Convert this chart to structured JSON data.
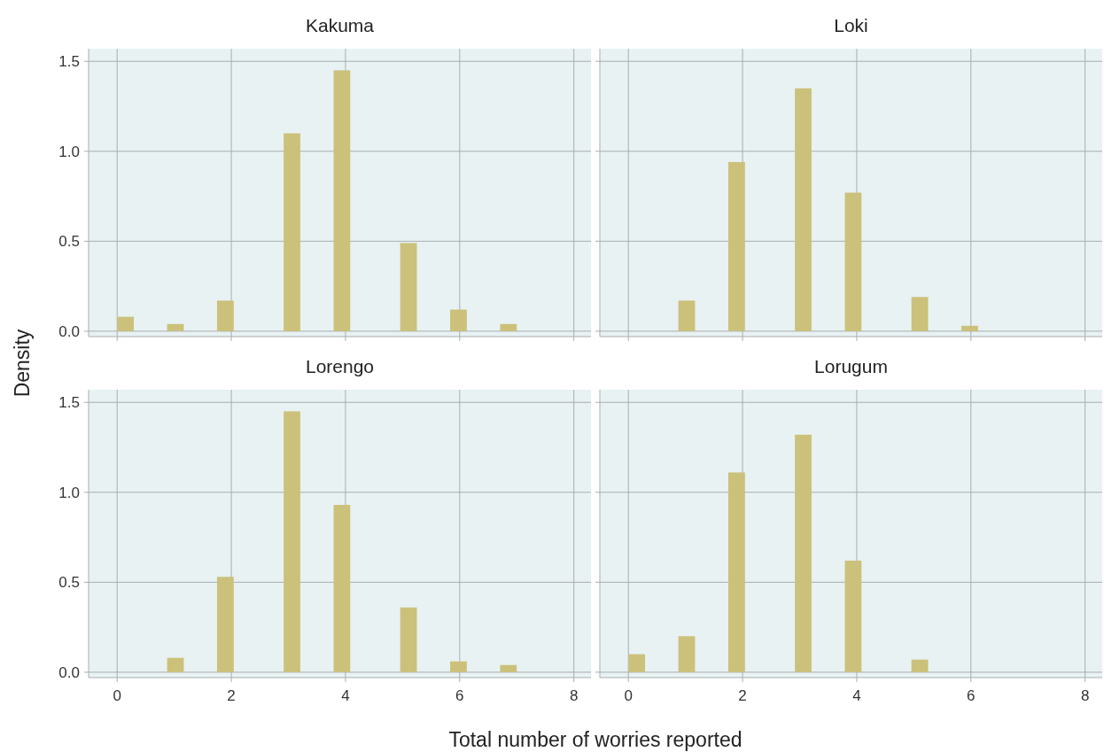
{
  "chart_data": [
    {
      "type": "histogram",
      "title": "Kakuma",
      "ylabel": "Density",
      "color": "#cbc17a",
      "bins": [
        0,
        0.292,
        0.583,
        0.875,
        1.167,
        1.458,
        1.75,
        2.042,
        2.333,
        2.625,
        2.917,
        3.208,
        3.5,
        3.792,
        4.083,
        4.375,
        4.667,
        4.958,
        5.25,
        5.542,
        5.833,
        6.125,
        6.417,
        6.708,
        7
      ],
      "values": [
        0.08,
        0,
        0,
        0.04,
        0,
        0,
        0.17,
        0,
        0,
        0,
        1.1,
        0,
        0,
        1.45,
        0,
        0,
        0,
        0.49,
        0,
        0,
        0.12,
        0,
        0,
        0.04
      ],
      "xlim": [
        -0.5,
        8.3
      ],
      "xticks": [
        0,
        2,
        4,
        6,
        8
      ],
      "ylim": [
        -0.03,
        1.57
      ],
      "yticks": [
        {
          "value": 0,
          "label": "0.0"
        },
        {
          "value": 0.5,
          "label": "0.5"
        },
        {
          "value": 1,
          "label": "1.0"
        },
        {
          "value": 1.5,
          "label": "1.5"
        }
      ],
      "grid": true,
      "tick_labels": "y"
    },
    {
      "type": "histogram",
      "title": "Loki",
      "color": "#cbc17a",
      "bins": [
        0,
        0.292,
        0.583,
        0.875,
        1.167,
        1.458,
        1.75,
        2.042,
        2.333,
        2.625,
        2.917,
        3.208,
        3.5,
        3.792,
        4.083,
        4.375,
        4.667,
        4.958,
        5.25,
        5.542,
        5.833,
        6.125,
        6.417,
        6.708,
        7
      ],
      "values": [
        0,
        0,
        0,
        0.17,
        0,
        0,
        0.94,
        0,
        0,
        0,
        1.35,
        0,
        0,
        0.77,
        0,
        0,
        0,
        0.19,
        0,
        0,
        0.03,
        0,
        0,
        0
      ],
      "xlim": [
        -0.5,
        8.3
      ],
      "xticks": [
        0,
        2,
        4,
        6,
        8
      ],
      "ylim": [
        -0.03,
        1.57
      ],
      "yticks": [
        0,
        0.5,
        1,
        1.5
      ],
      "grid": true,
      "tick_labels": false
    },
    {
      "type": "histogram",
      "title": "Lorengo",
      "xlabel": "Total number of worries reported",
      "color": "#cbc17a",
      "bins": [
        0,
        0.292,
        0.583,
        0.875,
        1.167,
        1.458,
        1.75,
        2.042,
        2.333,
        2.625,
        2.917,
        3.208,
        3.5,
        3.792,
        4.083,
        4.375,
        4.667,
        4.958,
        5.25,
        5.542,
        5.833,
        6.125,
        6.417,
        6.708,
        7
      ],
      "values": [
        0,
        0,
        0,
        0.08,
        0,
        0,
        0.53,
        0,
        0,
        0,
        1.45,
        0,
        0,
        0.93,
        0,
        0,
        0,
        0.36,
        0,
        0,
        0.06,
        0,
        0,
        0.04
      ],
      "xlim": [
        -0.5,
        8.3
      ],
      "xticks": [
        0,
        2,
        4,
        6,
        8
      ],
      "ylim": [
        -0.03,
        1.57
      ],
      "yticks": [
        {
          "value": 0,
          "label": "0.0"
        },
        {
          "value": 0.5,
          "label": "0.5"
        },
        {
          "value": 1,
          "label": "1.0"
        },
        {
          "value": 1.5,
          "label": "1.5"
        }
      ],
      "grid": true
    },
    {
      "type": "histogram",
      "title": "Lorugum",
      "color": "#cbc17a",
      "bins": [
        0,
        0.292,
        0.583,
        0.875,
        1.167,
        1.458,
        1.75,
        2.042,
        2.333,
        2.625,
        2.917,
        3.208,
        3.5,
        3.792,
        4.083,
        4.375,
        4.667,
        4.958,
        5.25,
        5.542,
        5.833,
        6.125,
        6.417,
        6.708,
        7
      ],
      "values": [
        0.1,
        0,
        0,
        0.2,
        0,
        0,
        1.11,
        0,
        0,
        0,
        1.32,
        0,
        0,
        0.62,
        0,
        0,
        0,
        0.07,
        0,
        0,
        0,
        0,
        0,
        0
      ],
      "xlim": [
        -0.5,
        8.3
      ],
      "xticks": [
        0,
        2,
        4,
        6,
        8
      ],
      "ylim": [
        -0.03,
        1.57
      ],
      "yticks": [
        0,
        0.5,
        1,
        1.5
      ],
      "grid": true,
      "tick_labels": "x"
    }
  ]
}
